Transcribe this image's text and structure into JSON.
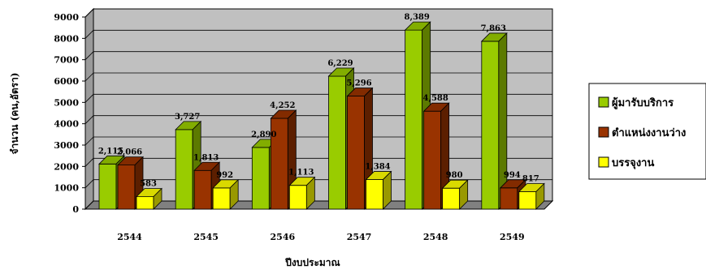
{
  "chart_data": {
    "type": "bar",
    "title": "",
    "xlabel": "ปีงบประมาณ",
    "ylabel": "จำนวน (คน,อัตรา)",
    "categories": [
      "2544",
      "2545",
      "2546",
      "2547",
      "2548",
      "2549"
    ],
    "ylim": [
      0,
      9000
    ],
    "yticks": [
      0,
      1000,
      2000,
      3000,
      4000,
      5000,
      6000,
      7000,
      8000,
      9000
    ],
    "grid": true,
    "legend_position": "right",
    "series": [
      {
        "name": "ผู้มารับบริการ",
        "values": [
          2115,
          3727,
          2890,
          6229,
          8389,
          7863
        ],
        "labels": [
          "2,115",
          "3,727",
          "2,890",
          "6,229",
          "8,389",
          "7,863"
        ],
        "color": "#99cc00"
      },
      {
        "name": "ตำแหน่งงานว่าง",
        "values": [
          2066,
          1813,
          4252,
          5296,
          4588,
          994
        ],
        "labels": [
          "2,066",
          "1,813",
          "4,252",
          "5,296",
          "4,588",
          "994"
        ],
        "color": "#993300"
      },
      {
        "name": "บรรจุงาน",
        "values": [
          583,
          992,
          1113,
          1384,
          980,
          817
        ],
        "labels": [
          "583",
          "992",
          "1,113",
          "1,384",
          "980",
          "817"
        ],
        "color": "#ffff00"
      }
    ]
  }
}
